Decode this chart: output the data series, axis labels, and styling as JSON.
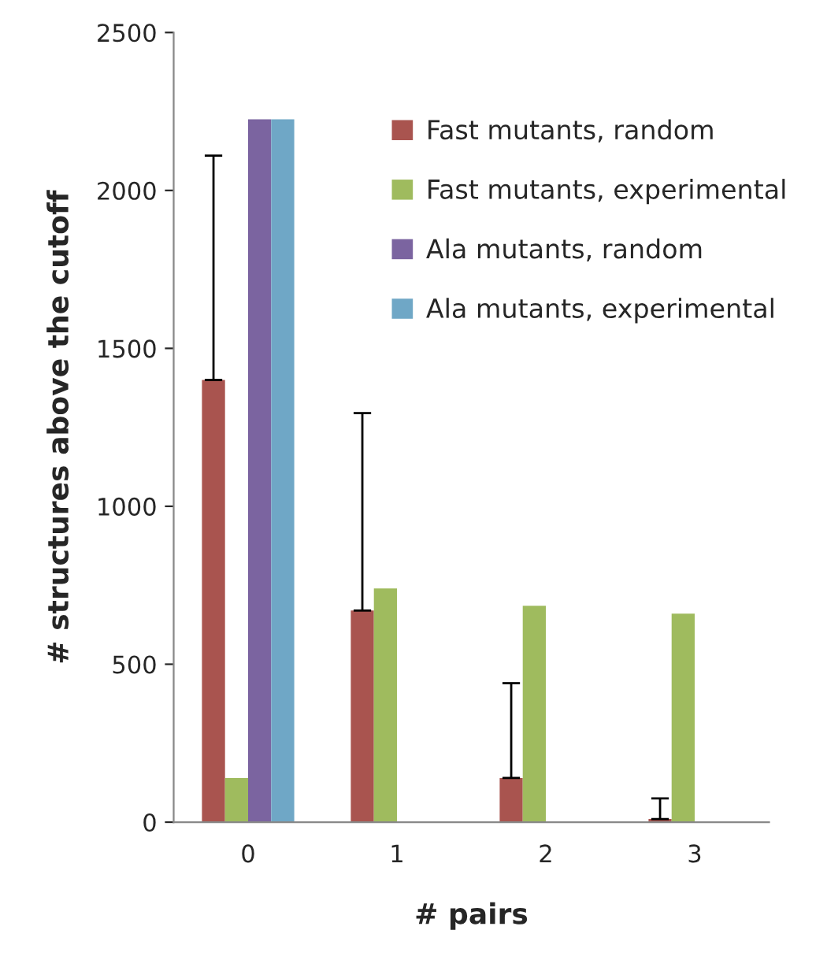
{
  "chart_data": {
    "type": "bar",
    "xlabel": "# pairs",
    "ylabel": "# structures above the cutoff",
    "categories": [
      "0",
      "1",
      "2",
      "3"
    ],
    "series": [
      {
        "name": "Fast mutants, random",
        "color": "#a9544f",
        "values": [
          1400,
          670,
          140,
          10
        ],
        "errors": [
          [
            1400,
            2110
          ],
          [
            670,
            1295
          ],
          [
            140,
            440
          ],
          [
            10,
            75
          ]
        ]
      },
      {
        "name": "Fast mutants, experimental",
        "color": "#9fbb5e",
        "values": [
          140,
          740,
          685,
          660
        ]
      },
      {
        "name": "Ala mutants, random",
        "color": "#7b64a0",
        "values": [
          2225,
          0,
          0,
          0
        ]
      },
      {
        "name": "Ala mutants, experimental",
        "color": "#6fa7c6",
        "values": [
          2225,
          0,
          0,
          0
        ]
      }
    ],
    "ylim": [
      0,
      2500
    ],
    "yticks": [
      0,
      500,
      1000,
      1500,
      2000,
      2500
    ],
    "grid": false,
    "legend": "top right"
  }
}
